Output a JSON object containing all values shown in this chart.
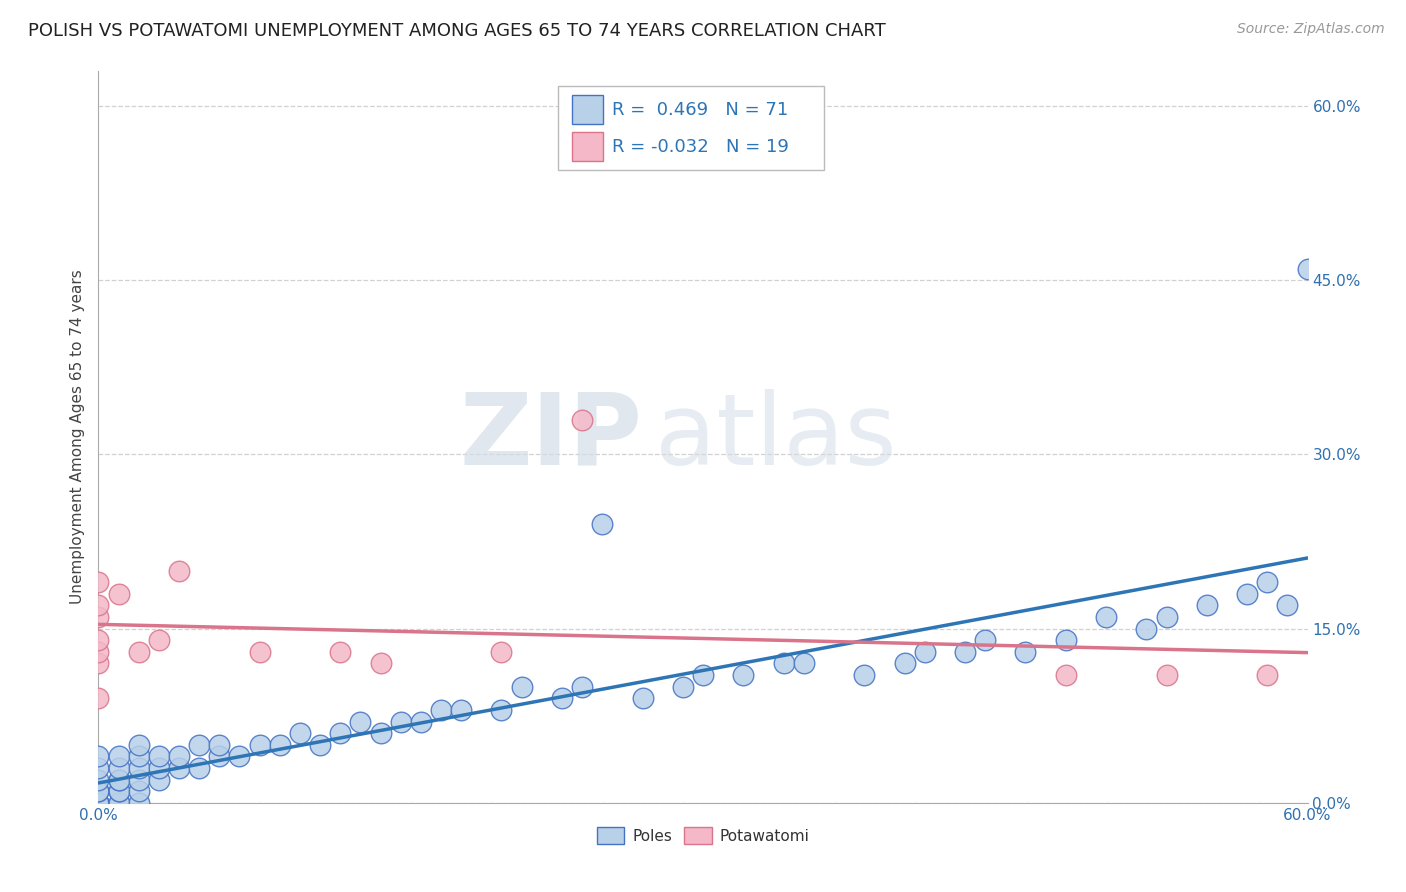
{
  "title": "POLISH VS POTAWATOMI UNEMPLOYMENT AMONG AGES 65 TO 74 YEARS CORRELATION CHART",
  "source": "Source: ZipAtlas.com",
  "ylabel": "Unemployment Among Ages 65 to 74 years",
  "xlim": [
    0.0,
    0.6
  ],
  "ylim": [
    0.0,
    0.63
  ],
  "yticks": [
    0.0,
    0.15,
    0.3,
    0.45,
    0.6
  ],
  "xticks": [
    0.0,
    0.1,
    0.2,
    0.3,
    0.4,
    0.5,
    0.6
  ],
  "xtick_labels": [
    "0.0%",
    "",
    "",
    "",
    "",
    "",
    "60.0%"
  ],
  "ytick_labels": [
    "0.0%",
    "15.0%",
    "30.0%",
    "45.0%",
    "60.0%"
  ],
  "poles_color": "#b8d0e8",
  "poles_edge_color": "#4472c4",
  "potawatomi_color": "#f4b8c8",
  "potawatomi_edge_color": "#d9748a",
  "trend_poles_color": "#2e75b6",
  "trend_potawatomi_color": "#d9748a",
  "R_poles": 0.469,
  "N_poles": 71,
  "R_potawatomi": -0.032,
  "N_potawatomi": 19,
  "poles_x": [
    0.0,
    0.0,
    0.0,
    0.0,
    0.0,
    0.0,
    0.0,
    0.0,
    0.0,
    0.0,
    0.01,
    0.01,
    0.01,
    0.01,
    0.01,
    0.01,
    0.01,
    0.01,
    0.02,
    0.02,
    0.02,
    0.02,
    0.02,
    0.02,
    0.03,
    0.03,
    0.03,
    0.04,
    0.04,
    0.05,
    0.05,
    0.06,
    0.06,
    0.07,
    0.08,
    0.09,
    0.1,
    0.11,
    0.12,
    0.13,
    0.14,
    0.15,
    0.16,
    0.17,
    0.18,
    0.2,
    0.21,
    0.23,
    0.24,
    0.25,
    0.27,
    0.29,
    0.3,
    0.32,
    0.34,
    0.35,
    0.38,
    0.4,
    0.41,
    0.43,
    0.44,
    0.46,
    0.48,
    0.5,
    0.52,
    0.53,
    0.55,
    0.57,
    0.58,
    0.59,
    0.6
  ],
  "poles_y": [
    0.0,
    0.0,
    0.0,
    0.0,
    0.0,
    0.01,
    0.01,
    0.02,
    0.03,
    0.04,
    0.0,
    0.0,
    0.01,
    0.01,
    0.02,
    0.02,
    0.03,
    0.04,
    0.0,
    0.01,
    0.02,
    0.03,
    0.04,
    0.05,
    0.02,
    0.03,
    0.04,
    0.03,
    0.04,
    0.03,
    0.05,
    0.04,
    0.05,
    0.04,
    0.05,
    0.05,
    0.06,
    0.05,
    0.06,
    0.07,
    0.06,
    0.07,
    0.07,
    0.08,
    0.08,
    0.08,
    0.1,
    0.09,
    0.1,
    0.24,
    0.09,
    0.1,
    0.11,
    0.11,
    0.12,
    0.12,
    0.11,
    0.12,
    0.13,
    0.13,
    0.14,
    0.13,
    0.14,
    0.16,
    0.15,
    0.16,
    0.17,
    0.18,
    0.19,
    0.17,
    0.46
  ],
  "potawatomi_x": [
    0.0,
    0.0,
    0.0,
    0.0,
    0.0,
    0.0,
    0.0,
    0.01,
    0.02,
    0.03,
    0.04,
    0.08,
    0.12,
    0.14,
    0.2,
    0.24,
    0.48,
    0.53,
    0.58
  ],
  "potawatomi_y": [
    0.12,
    0.13,
    0.14,
    0.16,
    0.17,
    0.19,
    0.09,
    0.18,
    0.13,
    0.14,
    0.2,
    0.13,
    0.13,
    0.12,
    0.13,
    0.33,
    0.11,
    0.11,
    0.11
  ],
  "background_color": "#ffffff",
  "grid_color": "#cccccc",
  "watermark_zip": "ZIP",
  "watermark_atlas": "atlas",
  "title_fontsize": 13,
  "label_fontsize": 11,
  "tick_fontsize": 11,
  "source_fontsize": 10,
  "legend_fontsize": 13,
  "scatter_size": 220
}
